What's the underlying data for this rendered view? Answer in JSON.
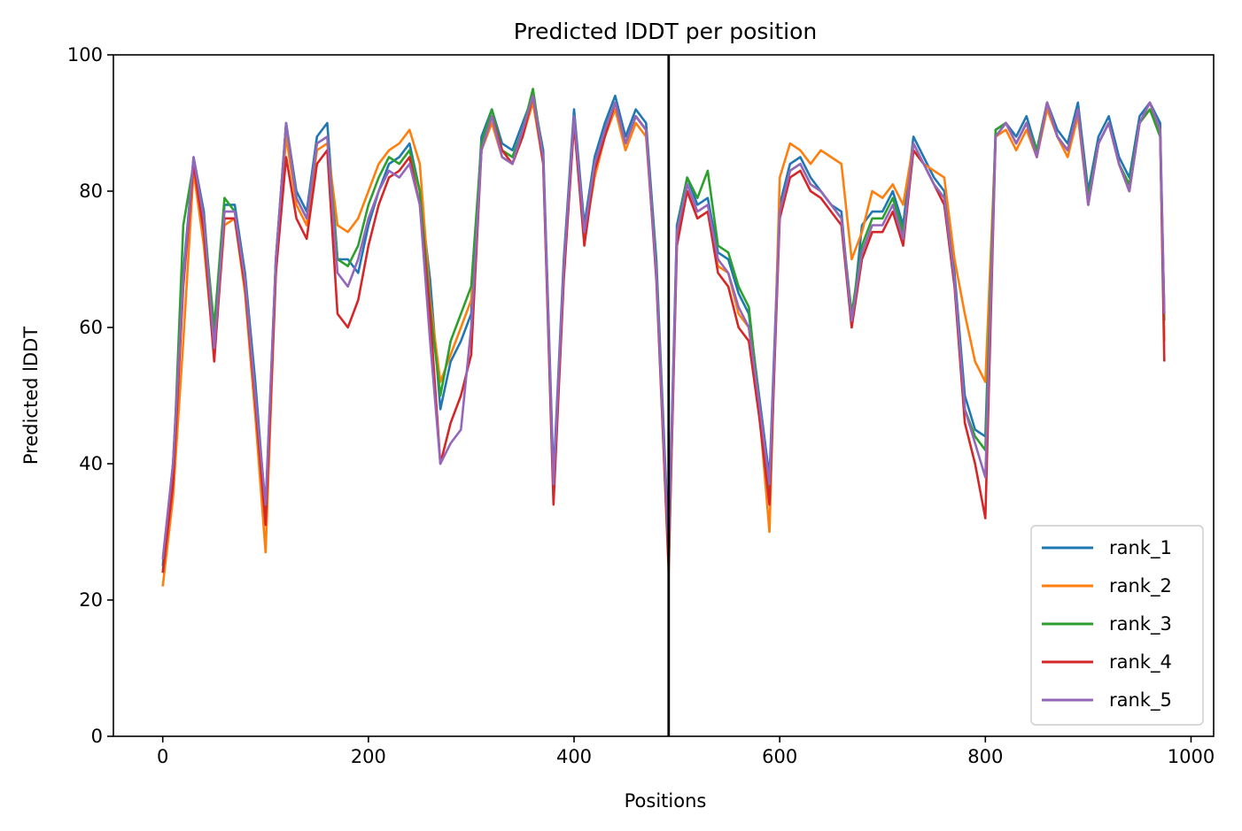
{
  "chart_data": {
    "type": "line",
    "title": "Predicted lDDT per position",
    "xlabel": "Positions",
    "ylabel": "Predicted lDDT",
    "xlim": [
      -48,
      1022
    ],
    "ylim": [
      0,
      100
    ],
    "xticks": [
      0,
      200,
      400,
      600,
      800,
      1000
    ],
    "yticks": [
      0,
      20,
      40,
      60,
      80,
      100
    ],
    "legend_position": "lower-right",
    "vline_x": 492,
    "grid": false,
    "series": [
      {
        "name": "rank_1",
        "color": "#1f77b4",
        "x": [
          0,
          10,
          20,
          30,
          40,
          50,
          60,
          70,
          80,
          90,
          100,
          110,
          120,
          130,
          140,
          150,
          160,
          170,
          180,
          190,
          200,
          210,
          220,
          230,
          240,
          250,
          260,
          270,
          280,
          290,
          300,
          310,
          320,
          330,
          340,
          350,
          360,
          370,
          380,
          390,
          400,
          410,
          420,
          430,
          440,
          450,
          460,
          470,
          480,
          492,
          500,
          510,
          520,
          530,
          540,
          550,
          560,
          570,
          580,
          590,
          600,
          610,
          620,
          630,
          640,
          650,
          660,
          670,
          680,
          690,
          700,
          710,
          720,
          730,
          740,
          750,
          760,
          770,
          780,
          790,
          800,
          810,
          820,
          830,
          840,
          850,
          860,
          870,
          880,
          890,
          900,
          910,
          920,
          930,
          940,
          950,
          960,
          970,
          974
        ],
        "values": [
          25,
          40,
          68,
          85,
          77,
          58,
          78,
          78,
          68,
          52,
          33,
          70,
          90,
          80,
          77,
          88,
          90,
          70,
          70,
          68,
          75,
          80,
          84,
          85,
          87,
          80,
          67,
          48,
          55,
          58,
          62,
          88,
          92,
          87,
          86,
          90,
          94,
          86,
          38,
          70,
          92,
          75,
          85,
          90,
          94,
          88,
          92,
          90,
          70,
          28,
          75,
          82,
          78,
          79,
          71,
          70,
          65,
          62,
          50,
          38,
          78,
          84,
          85,
          82,
          80,
          78,
          77,
          60,
          75,
          77,
          77,
          80,
          75,
          88,
          85,
          82,
          80,
          68,
          50,
          45,
          44,
          89,
          90,
          88,
          91,
          86,
          93,
          89,
          87,
          93,
          80,
          88,
          91,
          85,
          82,
          91,
          93,
          90,
          62
        ]
      },
      {
        "name": "rank_2",
        "color": "#ff7f0e",
        "x": [
          0,
          10,
          20,
          30,
          40,
          50,
          60,
          70,
          80,
          90,
          100,
          110,
          120,
          130,
          140,
          150,
          160,
          170,
          180,
          190,
          200,
          210,
          220,
          230,
          240,
          250,
          260,
          270,
          280,
          290,
          300,
          310,
          320,
          330,
          340,
          350,
          360,
          370,
          380,
          390,
          400,
          410,
          420,
          430,
          440,
          450,
          460,
          470,
          480,
          492,
          500,
          510,
          520,
          530,
          540,
          550,
          560,
          570,
          580,
          590,
          600,
          610,
          620,
          630,
          640,
          650,
          660,
          670,
          680,
          690,
          700,
          710,
          720,
          730,
          740,
          750,
          760,
          770,
          780,
          790,
          800,
          810,
          820,
          830,
          840,
          850,
          860,
          870,
          880,
          890,
          900,
          910,
          920,
          930,
          940,
          950,
          960,
          970,
          974
        ],
        "values": [
          22,
          35,
          58,
          83,
          72,
          56,
          75,
          76,
          65,
          47,
          27,
          68,
          88,
          78,
          75,
          86,
          87,
          75,
          74,
          76,
          80,
          84,
          86,
          87,
          89,
          84,
          64,
          52,
          56,
          60,
          64,
          86,
          90,
          85,
          84,
          88,
          93,
          84,
          35,
          68,
          90,
          73,
          82,
          88,
          92,
          86,
          90,
          88,
          68,
          24,
          73,
          80,
          76,
          77,
          69,
          68,
          62,
          60,
          48,
          30,
          82,
          87,
          86,
          84,
          86,
          85,
          84,
          70,
          74,
          80,
          79,
          81,
          78,
          87,
          84,
          83,
          82,
          70,
          62,
          55,
          52,
          88,
          89,
          86,
          89,
          85,
          92,
          88,
          85,
          91,
          78,
          87,
          90,
          84,
          80,
          90,
          92,
          89,
          58
        ]
      },
      {
        "name": "rank_3",
        "color": "#2ca02c",
        "x": [
          0,
          10,
          20,
          30,
          40,
          50,
          60,
          70,
          80,
          90,
          100,
          110,
          120,
          130,
          140,
          150,
          160,
          170,
          180,
          190,
          200,
          210,
          220,
          230,
          240,
          250,
          260,
          270,
          280,
          290,
          300,
          310,
          320,
          330,
          340,
          350,
          360,
          370,
          380,
          390,
          400,
          410,
          420,
          430,
          440,
          450,
          460,
          470,
          480,
          492,
          500,
          510,
          520,
          530,
          540,
          550,
          560,
          570,
          580,
          590,
          600,
          610,
          620,
          630,
          640,
          650,
          660,
          670,
          680,
          690,
          700,
          710,
          720,
          730,
          740,
          750,
          760,
          770,
          780,
          790,
          800,
          810,
          820,
          830,
          840,
          850,
          860,
          870,
          880,
          890,
          900,
          910,
          920,
          930,
          940,
          950,
          960,
          970,
          974
        ],
        "values": [
          24,
          38,
          75,
          84,
          76,
          60,
          79,
          77,
          67,
          50,
          32,
          70,
          90,
          79,
          76,
          87,
          88,
          70,
          69,
          72,
          78,
          82,
          85,
          84,
          86,
          80,
          63,
          50,
          58,
          62,
          66,
          87,
          92,
          86,
          85,
          89,
          95,
          85,
          36,
          69,
          91,
          74,
          84,
          89,
          93,
          87,
          91,
          89,
          69,
          26,
          74,
          82,
          79,
          83,
          72,
          71,
          66,
          63,
          49,
          35,
          77,
          83,
          84,
          81,
          80,
          78,
          76,
          62,
          72,
          76,
          76,
          79,
          74,
          86,
          84,
          81,
          79,
          67,
          48,
          44,
          42,
          89,
          90,
          87,
          90,
          86,
          93,
          88,
          86,
          92,
          79,
          87,
          90,
          84,
          81,
          90,
          92,
          88,
          61
        ]
      },
      {
        "name": "rank_4",
        "color": "#d62728",
        "x": [
          0,
          10,
          20,
          30,
          40,
          50,
          60,
          70,
          80,
          90,
          100,
          110,
          120,
          130,
          140,
          150,
          160,
          170,
          180,
          190,
          200,
          210,
          220,
          230,
          240,
          250,
          260,
          270,
          280,
          290,
          300,
          310,
          320,
          330,
          340,
          350,
          360,
          370,
          380,
          390,
          400,
          410,
          420,
          430,
          440,
          450,
          460,
          470,
          480,
          492,
          500,
          510,
          520,
          530,
          540,
          550,
          560,
          570,
          580,
          590,
          600,
          610,
          620,
          630,
          640,
          650,
          660,
          670,
          680,
          690,
          700,
          710,
          720,
          730,
          740,
          750,
          760,
          770,
          780,
          790,
          800,
          810,
          820,
          830,
          840,
          850,
          860,
          870,
          880,
          890,
          900,
          910,
          920,
          930,
          940,
          950,
          960,
          970,
          974
        ],
        "values": [
          24,
          37,
          66,
          84,
          74,
          55,
          76,
          76,
          66,
          49,
          31,
          68,
          85,
          76,
          73,
          84,
          86,
          62,
          60,
          64,
          72,
          78,
          82,
          83,
          85,
          78,
          62,
          40,
          46,
          50,
          56,
          86,
          91,
          86,
          84,
          88,
          94,
          84,
          34,
          67,
          90,
          72,
          83,
          88,
          93,
          87,
          91,
          89,
          67,
          25,
          72,
          80,
          76,
          77,
          68,
          66,
          60,
          58,
          47,
          34,
          76,
          82,
          83,
          80,
          79,
          77,
          75,
          60,
          70,
          74,
          74,
          77,
          72,
          86,
          84,
          81,
          78,
          66,
          46,
          40,
          32,
          88,
          90,
          87,
          90,
          85,
          93,
          88,
          86,
          92,
          78,
          87,
          90,
          84,
          80,
          90,
          93,
          89,
          55
        ]
      },
      {
        "name": "rank_5",
        "color": "#9467bd",
        "x": [
          0,
          10,
          20,
          30,
          40,
          50,
          60,
          70,
          80,
          90,
          100,
          110,
          120,
          130,
          140,
          150,
          160,
          170,
          180,
          190,
          200,
          210,
          220,
          230,
          240,
          250,
          260,
          270,
          280,
          290,
          300,
          310,
          320,
          330,
          340,
          350,
          360,
          370,
          380,
          390,
          400,
          410,
          420,
          430,
          440,
          450,
          460,
          470,
          480,
          492,
          500,
          510,
          520,
          530,
          540,
          550,
          560,
          570,
          580,
          590,
          600,
          610,
          620,
          630,
          640,
          650,
          660,
          670,
          680,
          690,
          700,
          710,
          720,
          730,
          740,
          750,
          760,
          770,
          780,
          790,
          800,
          810,
          820,
          830,
          840,
          850,
          860,
          870,
          880,
          890,
          900,
          910,
          920,
          930,
          940,
          950,
          960,
          970,
          974
        ],
        "values": [
          26,
          40,
          67,
          85,
          76,
          57,
          77,
          77,
          67,
          50,
          34,
          70,
          90,
          79,
          76,
          87,
          88,
          68,
          66,
          70,
          76,
          80,
          83,
          82,
          84,
          78,
          58,
          40,
          43,
          45,
          60,
          86,
          91,
          85,
          84,
          89,
          94,
          85,
          37,
          69,
          91,
          74,
          84,
          89,
          93,
          87,
          91,
          89,
          68,
          27,
          74,
          81,
          77,
          78,
          70,
          68,
          63,
          60,
          49,
          37,
          77,
          83,
          84,
          81,
          80,
          78,
          76,
          61,
          71,
          75,
          75,
          78,
          73,
          87,
          84,
          81,
          79,
          67,
          48,
          43,
          38,
          88,
          90,
          87,
          90,
          85,
          93,
          88,
          86,
          92,
          78,
          87,
          90,
          84,
          80,
          90,
          93,
          89,
          62
        ]
      }
    ]
  }
}
